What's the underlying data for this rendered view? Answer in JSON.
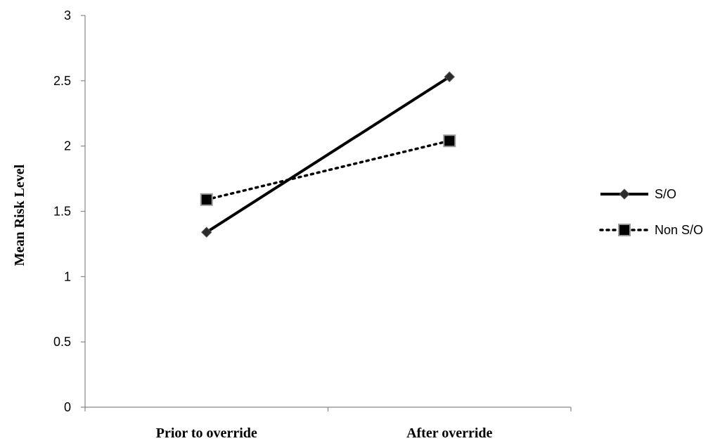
{
  "chart_data": {
    "type": "line",
    "categories": [
      "Prior to override",
      "After override"
    ],
    "series": [
      {
        "name": "S/O",
        "values": [
          1.34,
          2.53
        ],
        "line_style": "solid",
        "marker": "diamond",
        "color": "#000000"
      },
      {
        "name": "Non S/O",
        "values": [
          1.59,
          2.04
        ],
        "line_style": "dotted",
        "marker": "square",
        "color": "#000000"
      }
    ],
    "ylabel": "Mean Risk Level",
    "xlabel": "",
    "ylim": [
      0,
      3
    ],
    "yticks": [
      "0",
      "0.5",
      "1",
      "1.5",
      "2",
      "2.5",
      "3"
    ],
    "grid": false,
    "legend_position": "right"
  }
}
